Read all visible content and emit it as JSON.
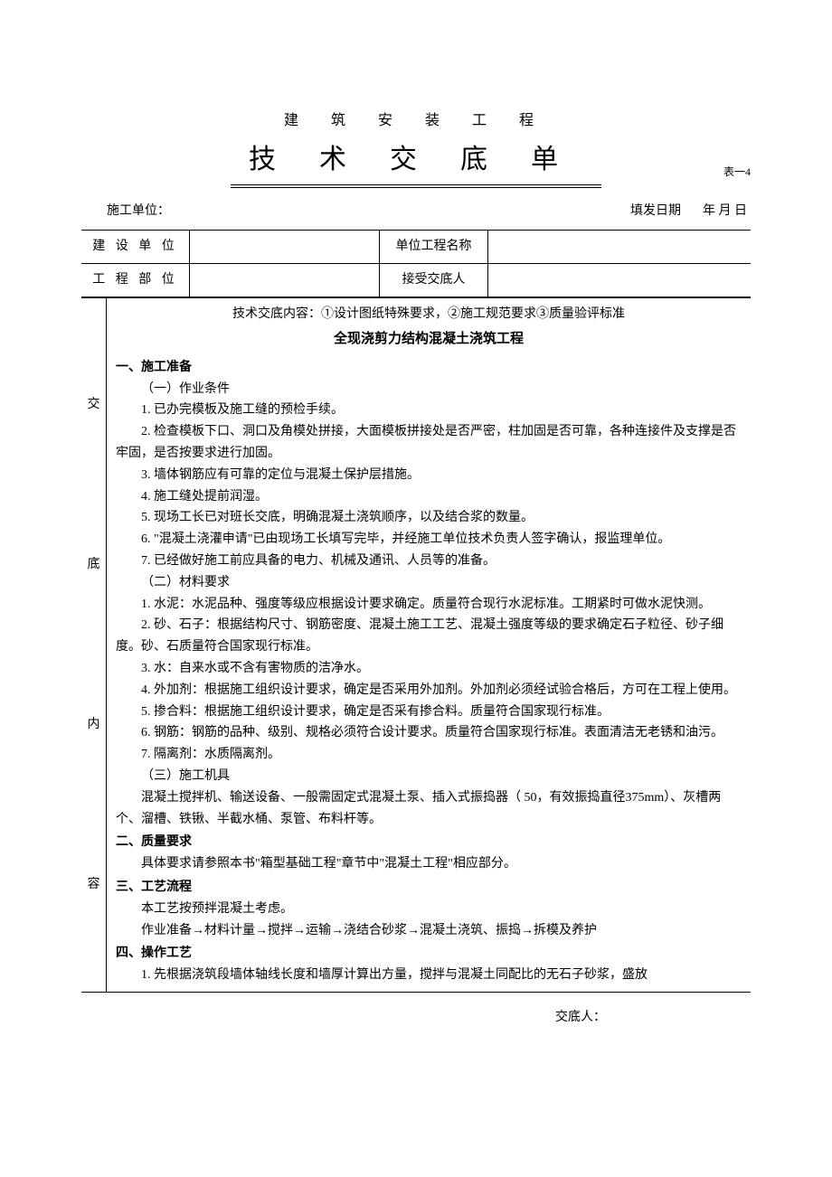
{
  "subtitle": "建 筑 安 装 工 程",
  "main_title": "技术交底单",
  "table_label": "表一4",
  "meta": {
    "unit_label": "施工单位：",
    "date_label": "填发日期",
    "date_ymd": "年  月  日"
  },
  "header": {
    "r1c1": "建 设 单 位",
    "r1c2": "",
    "r1c3": "单位工程名称",
    "r1c4": "",
    "r2c1": "工 程 部 位",
    "r2c2": "",
    "r2c3": "接受交底人",
    "r2c4": ""
  },
  "side_chars": [
    "交",
    "底",
    "内",
    "容"
  ],
  "content": {
    "subnote": "技术交底内容：①设计图纸特殊要求，②施工规范要求③质量验评标准",
    "section_title": "全现浇剪力结构混凝土浇筑工程",
    "s1_h": "一、施工准备",
    "s1_1": "（一）作业条件",
    "s1_1_1": "1. 已办完模板及施工缝的预检手续。",
    "s1_1_2": "2. 检查模板下口、洞口及角模处拼接，大面模板拼接处是否严密，柱加固是否可靠，各种连接件及支撑是否牢固，是否按要求进行加固。",
    "s1_1_3": "3. 墙体钢筋应有可靠的定位与混凝土保护层措施。",
    "s1_1_4": "4. 施工缝处提前润湿。",
    "s1_1_5": "5. 现场工长已对班长交底，明确混凝土浇筑顺序，以及结合浆的数量。",
    "s1_1_6": "6. \"混凝土浇灌申请\"已由现场工长填写完毕，并经施工单位技术负责人签字确认，报监理单位。",
    "s1_1_7": "7. 已经做好施工前应具备的电力、机械及通讯、人员等的准备。",
    "s1_2": "（二）材料要求",
    "s1_2_1": "1. 水泥：水泥品种、强度等级应根据设计要求确定。质量符合现行水泥标准。工期紧时可做水泥快测。",
    "s1_2_2": "2. 砂、石子：根据结构尺寸、钢筋密度、混凝土施工工艺、混凝土强度等级的要求确定石子粒径、砂子细度。砂、石质量符合国家现行标准。",
    "s1_2_3": "3. 水：自来水或不含有害物质的洁净水。",
    "s1_2_4": "4. 外加剂：根据施工组织设计要求，确定是否采用外加剂。外加剂必须经试验合格后，方可在工程上使用。",
    "s1_2_5": "5. 掺合料：根据施工组织设计要求，确定是否采有掺合料。质量符合国家现行标准。",
    "s1_2_6": "6. 钢筋：钢筋的品种、级别、规格必须符合设计要求。质量符合国家现行标准。表面清洁无老锈和油污。",
    "s1_2_7": "7. 隔离剂：水质隔离剂。",
    "s1_3": "（三）施工机具",
    "s1_3_1": "混凝土搅拌机、输送设备、一般需固定式混凝土泵、插入式振捣器（ 50，有效振捣直径375mm）、灰槽两个、溜槽、铁锹、半截水桶、泵管、布料杆等。",
    "s2_h": "二、质量要求",
    "s2_1": "具体要求请参照本书\"箱型基础工程\"章节中\"混凝土工程\"相应部分。",
    "s3_h": "三、工艺流程",
    "s3_1": "本工艺按预拌混凝土考虑。",
    "s3_2": "作业准备→材料计量→搅拌→运输→浇结合砂浆→混凝土浇筑、振捣→拆模及养护",
    "s4_h": "四、操作工艺",
    "s4_1": "1. 先根据浇筑段墙体轴线长度和墙厚计算出方量，搅拌与混凝土同配比的无石子砂浆，盛放"
  },
  "footer": "交底人："
}
